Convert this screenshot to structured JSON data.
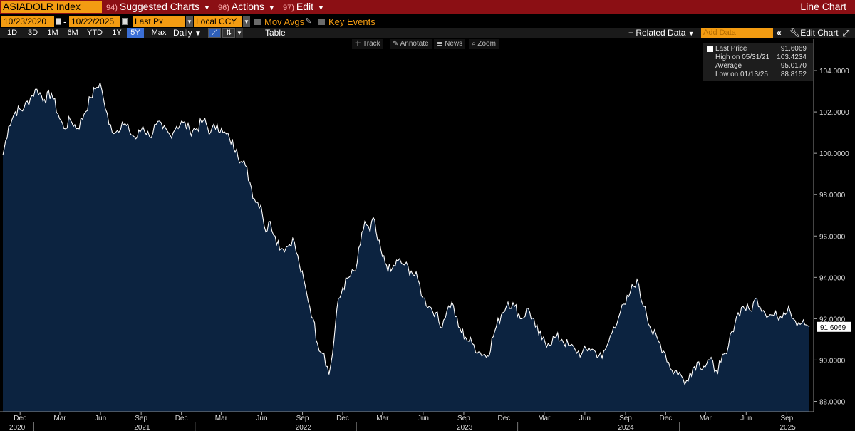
{
  "toolbar": {
    "ticker": "ASIADOLR Index",
    "suggested": {
      "num": "94)",
      "label": "Suggested Charts"
    },
    "actions": {
      "num": "96)",
      "label": "Actions"
    },
    "edit": {
      "num": "97)",
      "label": "Edit"
    },
    "chart_kind": "Line Chart"
  },
  "params": {
    "start_date": "10/23/2020",
    "end_date": "10/22/2025",
    "date_sep": "-",
    "field": "Last Px",
    "currency": "Local CCY",
    "mov_avgs": "Mov Avgs",
    "key_events": "Key Events"
  },
  "periods": {
    "buttons": [
      "1D",
      "3D",
      "1M",
      "6M",
      "YTD",
      "1Y",
      "5Y",
      "Max"
    ],
    "selected": "5Y",
    "frequency": "Daily",
    "table": "Table",
    "related": "+ Related Data",
    "add_data_placeholder": "Add Data",
    "edit_chart": "Edit Chart"
  },
  "chart_controls": [
    "Track",
    "Annotate",
    "News",
    "Zoom"
  ],
  "legend": {
    "last": {
      "label": "Last Price",
      "value": "91.6069"
    },
    "high": {
      "label": "High on 05/31/21",
      "value": "103.4234"
    },
    "avg": {
      "label": "Average",
      "value": "95.0170"
    },
    "low": {
      "label": "Low on 01/13/25",
      "value": "88.8152"
    }
  },
  "last_tag": "91.6069",
  "colors": {
    "accent": "#f39c12",
    "header": "#8b0f14",
    "area": "#0c2340",
    "line": "#ffffff",
    "selected": "#3b6fd6"
  },
  "chart_data": {
    "type": "area",
    "ylim": [
      87.5,
      105.0
    ],
    "y_ticks": [
      "104.0000",
      "102.0000",
      "100.0000",
      "98.0000",
      "96.0000",
      "94.0000",
      "92.0000",
      "90.0000",
      "88.0000"
    ],
    "y_tick_values": [
      104,
      102,
      100,
      98,
      96,
      94,
      92,
      90,
      88
    ],
    "x_range": [
      "2020-10-23",
      "2025-10-22"
    ],
    "x_month_ticks": [
      {
        "date": "2020-12-01",
        "label": "Dec"
      },
      {
        "date": "2021-03-01",
        "label": "Mar"
      },
      {
        "date": "2021-06-01",
        "label": "Jun"
      },
      {
        "date": "2021-09-01",
        "label": "Sep"
      },
      {
        "date": "2021-12-01",
        "label": "Dec"
      },
      {
        "date": "2022-03-01",
        "label": "Mar"
      },
      {
        "date": "2022-06-01",
        "label": "Jun"
      },
      {
        "date": "2022-09-01",
        "label": "Sep"
      },
      {
        "date": "2022-12-01",
        "label": "Dec"
      },
      {
        "date": "2023-03-01",
        "label": "Mar"
      },
      {
        "date": "2023-06-01",
        "label": "Jun"
      },
      {
        "date": "2023-09-01",
        "label": "Sep"
      },
      {
        "date": "2023-12-01",
        "label": "Dec"
      },
      {
        "date": "2024-03-01",
        "label": "Mar"
      },
      {
        "date": "2024-06-01",
        "label": "Jun"
      },
      {
        "date": "2024-09-01",
        "label": "Sep"
      },
      {
        "date": "2024-12-01",
        "label": "Dec"
      },
      {
        "date": "2025-03-01",
        "label": "Mar"
      },
      {
        "date": "2025-06-01",
        "label": "Jun"
      },
      {
        "date": "2025-09-01",
        "label": "Sep"
      }
    ],
    "x_year_ticks": [
      {
        "date": "2020-10-23",
        "label": "2020"
      },
      {
        "date": "2021-01-01",
        "label": "2021"
      },
      {
        "date": "2022-01-01",
        "label": "2022"
      },
      {
        "date": "2023-01-01",
        "label": "2023"
      },
      {
        "date": "2024-01-01",
        "label": "2024"
      },
      {
        "date": "2025-01-01",
        "label": "2025"
      }
    ],
    "series": [
      {
        "points": [
          [
            "2020-10-23",
            99.9
          ],
          [
            "2020-11-05",
            101.3
          ],
          [
            "2020-11-20",
            102.0
          ],
          [
            "2020-12-10",
            102.2
          ],
          [
            "2020-12-28",
            102.8
          ],
          [
            "2021-01-08",
            103.1
          ],
          [
            "2021-01-25",
            102.6
          ],
          [
            "2021-02-10",
            102.9
          ],
          [
            "2021-02-25",
            101.9
          ],
          [
            "2021-03-10",
            101.2
          ],
          [
            "2021-03-25",
            101.6
          ],
          [
            "2021-04-10",
            101.2
          ],
          [
            "2021-04-25",
            101.9
          ],
          [
            "2021-05-10",
            102.7
          ],
          [
            "2021-05-20",
            103.1
          ],
          [
            "2021-05-31",
            103.42
          ],
          [
            "2021-06-08",
            102.6
          ],
          [
            "2021-06-20",
            101.4
          ],
          [
            "2021-07-05",
            101.0
          ],
          [
            "2021-07-20",
            101.5
          ],
          [
            "2021-08-05",
            101.1
          ],
          [
            "2021-08-20",
            100.7
          ],
          [
            "2021-09-05",
            101.3
          ],
          [
            "2021-09-20",
            100.8
          ],
          [
            "2021-10-05",
            101.4
          ],
          [
            "2021-10-20",
            101.2
          ],
          [
            "2021-11-05",
            100.9
          ],
          [
            "2021-11-20",
            101.3
          ],
          [
            "2021-12-05",
            101.5
          ],
          [
            "2021-12-20",
            101.1
          ],
          [
            "2022-01-05",
            101.2
          ],
          [
            "2022-01-20",
            101.6
          ],
          [
            "2022-02-05",
            101.0
          ],
          [
            "2022-02-20",
            101.4
          ],
          [
            "2022-03-05",
            101.0
          ],
          [
            "2022-03-20",
            100.7
          ],
          [
            "2022-04-05",
            100.2
          ],
          [
            "2022-04-15",
            99.6
          ],
          [
            "2022-04-25",
            99.4
          ],
          [
            "2022-05-05",
            98.6
          ],
          [
            "2022-05-15",
            97.8
          ],
          [
            "2022-05-30",
            97.5
          ],
          [
            "2022-06-10",
            96.2
          ],
          [
            "2022-06-20",
            96.7
          ],
          [
            "2022-07-01",
            96.0
          ],
          [
            "2022-07-15",
            95.4
          ],
          [
            "2022-07-30",
            95.5
          ],
          [
            "2022-08-10",
            95.9
          ],
          [
            "2022-08-25",
            94.6
          ],
          [
            "2022-09-10",
            93.3
          ],
          [
            "2022-09-25",
            92.0
          ],
          [
            "2022-10-05",
            90.8
          ],
          [
            "2022-10-20",
            90.3
          ],
          [
            "2022-10-31",
            89.3
          ],
          [
            "2022-11-08",
            90.3
          ],
          [
            "2022-11-18",
            92.5
          ],
          [
            "2022-12-01",
            93.5
          ],
          [
            "2022-12-15",
            94.0
          ],
          [
            "2022-12-30",
            94.3
          ],
          [
            "2023-01-10",
            95.6
          ],
          [
            "2023-01-20",
            96.7
          ],
          [
            "2023-02-01",
            96.2
          ],
          [
            "2023-02-08",
            96.9
          ],
          [
            "2023-02-18",
            95.8
          ],
          [
            "2023-03-01",
            95.0
          ],
          [
            "2023-03-10",
            94.6
          ],
          [
            "2023-03-20",
            94.3
          ],
          [
            "2023-04-05",
            94.8
          ],
          [
            "2023-04-20",
            94.6
          ],
          [
            "2023-05-05",
            94.3
          ],
          [
            "2023-05-20",
            93.9
          ],
          [
            "2023-06-01",
            93.0
          ],
          [
            "2023-06-15",
            92.6
          ],
          [
            "2023-06-30",
            92.3
          ],
          [
            "2023-07-10",
            91.6
          ],
          [
            "2023-07-25",
            92.4
          ],
          [
            "2023-08-05",
            92.8
          ],
          [
            "2023-08-20",
            91.6
          ],
          [
            "2023-09-05",
            91.1
          ],
          [
            "2023-09-20",
            90.8
          ],
          [
            "2023-10-05",
            90.4
          ],
          [
            "2023-10-25",
            90.2
          ],
          [
            "2023-11-10",
            91.4
          ],
          [
            "2023-11-25",
            92.2
          ],
          [
            "2023-12-10",
            92.8
          ],
          [
            "2023-12-25",
            92.6
          ],
          [
            "2024-01-10",
            92.0
          ],
          [
            "2024-01-25",
            92.5
          ],
          [
            "2024-02-10",
            91.6
          ],
          [
            "2024-02-25",
            91.0
          ],
          [
            "2024-03-10",
            90.8
          ],
          [
            "2024-03-25",
            91.1
          ],
          [
            "2024-04-10",
            91.0
          ],
          [
            "2024-04-25",
            90.7
          ],
          [
            "2024-05-10",
            90.5
          ],
          [
            "2024-05-25",
            90.3
          ],
          [
            "2024-06-10",
            90.6
          ],
          [
            "2024-06-25",
            90.4
          ],
          [
            "2024-07-10",
            90.1
          ],
          [
            "2024-07-25",
            90.9
          ],
          [
            "2024-08-05",
            91.6
          ],
          [
            "2024-08-20",
            92.3
          ],
          [
            "2024-09-01",
            92.7
          ],
          [
            "2024-09-12",
            93.3
          ],
          [
            "2024-09-27",
            93.9
          ],
          [
            "2024-10-05",
            93.0
          ],
          [
            "2024-10-15",
            92.6
          ],
          [
            "2024-10-30",
            91.4
          ],
          [
            "2024-11-15",
            90.9
          ],
          [
            "2024-11-30",
            90.3
          ],
          [
            "2024-12-15",
            89.5
          ],
          [
            "2025-01-01",
            89.4
          ],
          [
            "2025-01-13",
            88.82
          ],
          [
            "2025-01-25",
            89.4
          ],
          [
            "2025-02-10",
            89.9
          ],
          [
            "2025-02-25",
            89.7
          ],
          [
            "2025-03-10",
            90.0
          ],
          [
            "2025-03-25",
            89.5
          ],
          [
            "2025-04-05",
            89.9
          ],
          [
            "2025-04-18",
            90.3
          ],
          [
            "2025-04-30",
            91.4
          ],
          [
            "2025-05-10",
            92.1
          ],
          [
            "2025-05-25",
            92.6
          ],
          [
            "2025-06-10",
            92.4
          ],
          [
            "2025-06-25",
            93.0
          ],
          [
            "2025-07-10",
            92.4
          ],
          [
            "2025-07-25",
            92.2
          ],
          [
            "2025-08-10",
            92.1
          ],
          [
            "2025-08-25",
            92.3
          ],
          [
            "2025-09-05",
            92.6
          ],
          [
            "2025-09-20",
            91.9
          ],
          [
            "2025-10-05",
            91.8
          ],
          [
            "2025-10-15",
            91.7
          ],
          [
            "2025-10-22",
            91.6069
          ]
        ]
      }
    ]
  }
}
